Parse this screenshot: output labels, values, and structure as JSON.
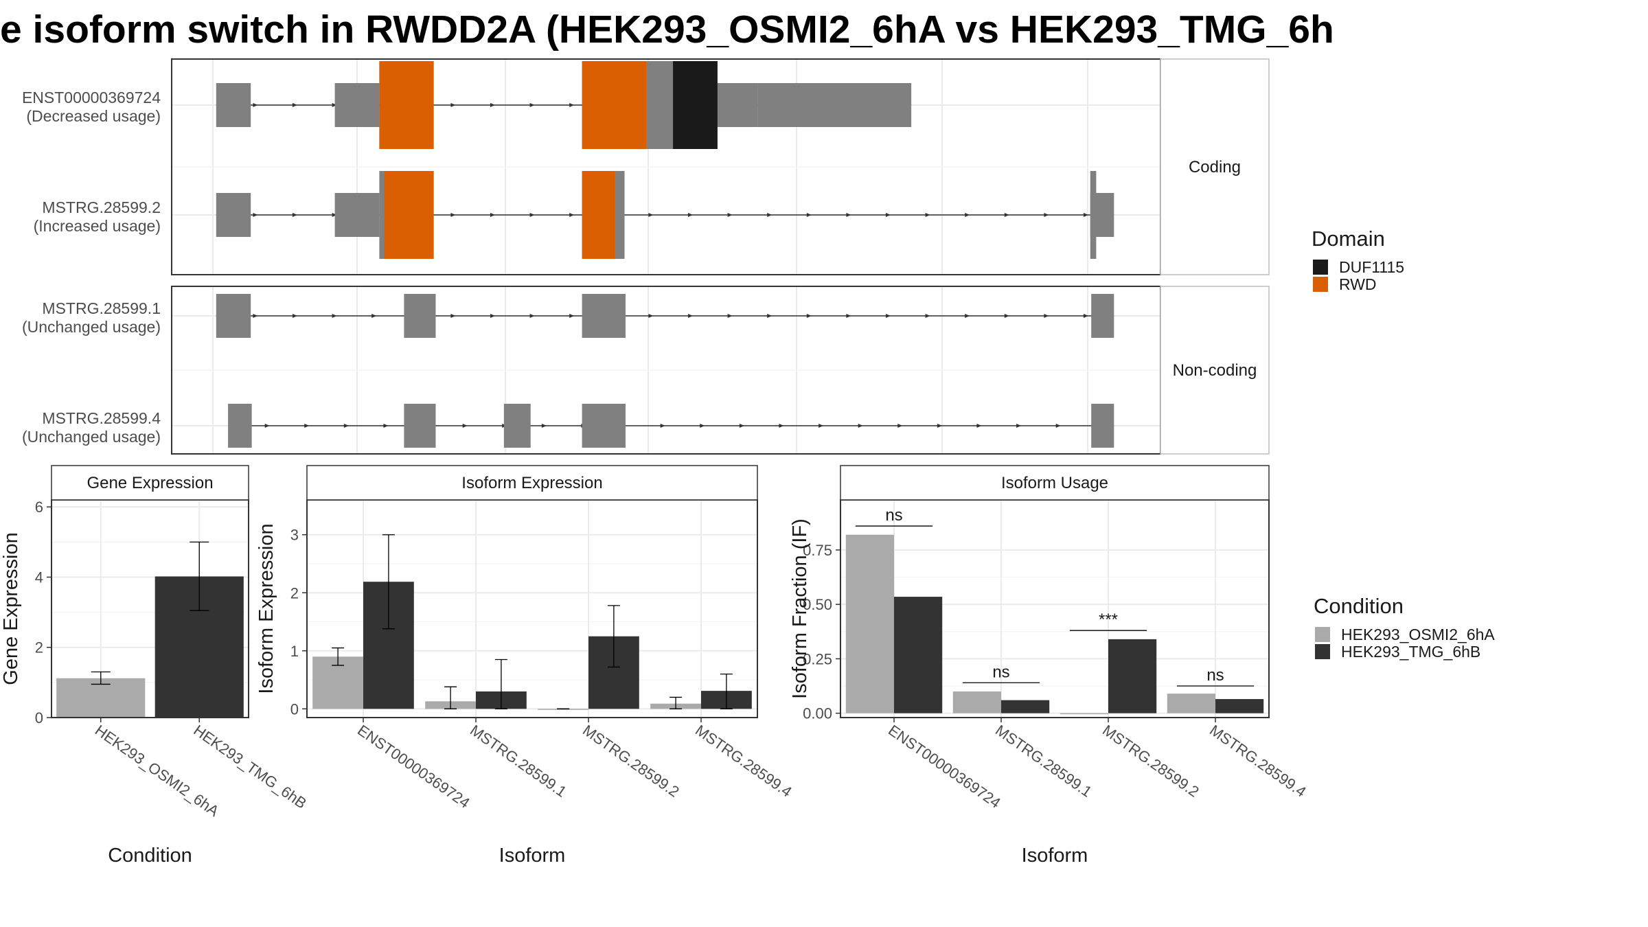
{
  "title": "e isoform switch in RWDD2A (HEK293_OSMI2_6hA vs HEK293_TMG_6h",
  "colors": {
    "exon": "#808080",
    "DUF1115": "#1a1a1a",
    "RWD": "#d95f02",
    "HEK293_OSMI2_6hA": "#aaaaaa",
    "HEK293_TMG_6hB": "#333333"
  },
  "transcript_panel": {
    "facets": [
      {
        "label": "Coding",
        "tracks": [
          {
            "id": "ENST00000369724",
            "usage": "(Decreased usage)",
            "exons": [
              [
                0.045,
                0.08
              ],
              [
                0.165,
                0.21
              ],
              [
                0.552,
                0.593
              ],
              [
                0.593,
                0.748
              ]
            ],
            "thick": [
              [
                0.21,
                0.265
              ],
              [
                0.415,
                0.552
              ]
            ],
            "domains": [
              {
                "name": "RWD",
                "start": 0.21,
                "end": 0.265
              },
              {
                "name": "RWD",
                "start": 0.415,
                "end": 0.48
              },
              {
                "name": "DUF1115",
                "start": 0.507,
                "end": 0.552
              }
            ]
          },
          {
            "id": "MSTRG.28599.2",
            "usage": "(Increased usage)",
            "exons": [
              [
                0.045,
                0.08
              ],
              [
                0.165,
                0.21
              ],
              [
                0.929,
                0.953
              ]
            ],
            "thick": [
              [
                0.21,
                0.265
              ],
              [
                0.415,
                0.458
              ],
              [
                0.929,
                0.935
              ]
            ],
            "domains": [
              {
                "name": "RWD",
                "start": 0.215,
                "end": 0.265
              },
              {
                "name": "RWD",
                "start": 0.415,
                "end": 0.448
              }
            ]
          }
        ]
      },
      {
        "label": "Non-coding",
        "tracks": [
          {
            "id": "MSTRG.28599.1",
            "usage": "(Unchanged usage)",
            "exons": [
              [
                0.045,
                0.08
              ],
              [
                0.235,
                0.267
              ],
              [
                0.415,
                0.459
              ],
              [
                0.93,
                0.953
              ]
            ]
          },
          {
            "id": "MSTRG.28599.4",
            "usage": "(Unchanged usage)",
            "exons": [
              [
                0.057,
                0.081
              ],
              [
                0.235,
                0.267
              ],
              [
                0.336,
                0.363
              ],
              [
                0.415,
                0.459
              ],
              [
                0.93,
                0.953
              ]
            ]
          }
        ]
      }
    ],
    "legend": {
      "title": "Domain",
      "items": [
        {
          "name": "DUF1115",
          "color": "#1a1a1a"
        },
        {
          "name": "RWD",
          "color": "#d95f02"
        }
      ]
    }
  },
  "chart_data": [
    {
      "type": "bar",
      "strip_title": "Gene Expression",
      "xlabel": "Condition",
      "ylabel": "Gene Expression",
      "ylim": [
        0,
        6.2
      ],
      "yticks": [
        0,
        2,
        4,
        6
      ],
      "categories": [
        "HEK293_OSMI2_6hA",
        "HEK293_TMG_6hB"
      ],
      "values": [
        1.12,
        4.02
      ],
      "error_low": [
        0.95,
        3.05
      ],
      "error_high": [
        1.3,
        5.0
      ]
    },
    {
      "type": "bar",
      "strip_title": "Isoform Expression",
      "xlabel": "Isoform",
      "ylabel": "Isoform Expression",
      "ylim": [
        -0.15,
        3.6
      ],
      "yticks": [
        0,
        1,
        2,
        3
      ],
      "categories": [
        "ENST00000369724",
        "MSTRG.28599.1",
        "MSTRG.28599.2",
        "MSTRG.28599.4"
      ],
      "series": [
        {
          "name": "HEK293_OSMI2_6hA",
          "values": [
            0.9,
            0.13,
            0.0,
            0.09
          ],
          "error_low": [
            0.75,
            0.0,
            0.0,
            0.0
          ],
          "error_high": [
            1.05,
            0.38,
            0.0,
            0.2
          ]
        },
        {
          "name": "HEK293_TMG_6hB",
          "values": [
            2.19,
            0.3,
            1.25,
            0.31
          ],
          "error_low": [
            1.38,
            0.0,
            0.72,
            0.0
          ],
          "error_high": [
            3.0,
            0.85,
            1.78,
            0.6
          ]
        }
      ]
    },
    {
      "type": "bar",
      "strip_title": "Isoform Usage",
      "xlabel": "Isoform",
      "ylabel": "Isoform Fraction (IF)",
      "ylim": [
        -0.02,
        0.98
      ],
      "yticks": [
        0.0,
        0.25,
        0.5,
        0.75
      ],
      "ytick_labels": [
        "0.00",
        "0.25",
        "0.50",
        "0.75"
      ],
      "categories": [
        "ENST00000369724",
        "MSTRG.28599.1",
        "MSTRG.28599.2",
        "MSTRG.28599.4"
      ],
      "series": [
        {
          "name": "HEK293_OSMI2_6hA",
          "values": [
            0.82,
            0.1,
            0.0,
            0.09
          ]
        },
        {
          "name": "HEK293_TMG_6hB",
          "values": [
            0.535,
            0.06,
            0.34,
            0.065
          ]
        }
      ],
      "annotations": [
        {
          "category": "ENST00000369724",
          "text": "ns",
          "y": 0.86
        },
        {
          "category": "MSTRG.28599.1",
          "text": "ns",
          "y": 0.14
        },
        {
          "category": "MSTRG.28599.2",
          "text": "***",
          "y": 0.38
        },
        {
          "category": "MSTRG.28599.4",
          "text": "ns",
          "y": 0.125
        }
      ]
    }
  ],
  "condition_legend": {
    "title": "Condition",
    "items": [
      {
        "name": "HEK293_OSMI2_6hA",
        "color": "#aaaaaa"
      },
      {
        "name": "HEK293_TMG_6hB",
        "color": "#333333"
      }
    ]
  }
}
